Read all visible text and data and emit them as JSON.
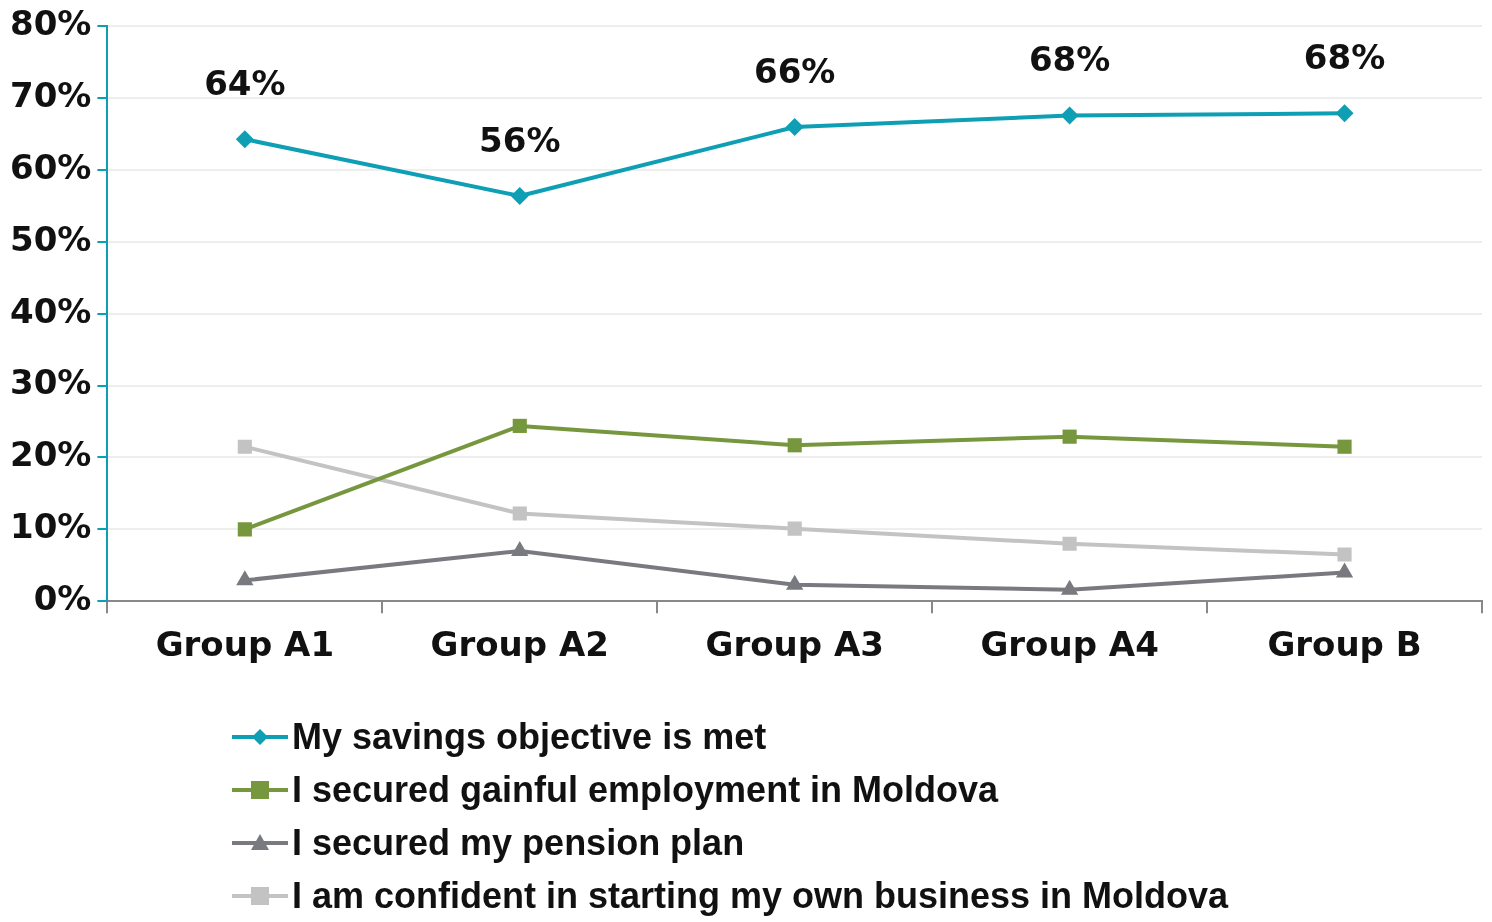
{
  "chart_data": {
    "type": "line",
    "categories": [
      "Group A1",
      "Group A2",
      "Group A3",
      "Group A4",
      "Group B"
    ],
    "series": [
      {
        "name": "My savings objective is met",
        "color": "#0e9fb5",
        "marker": "diamond",
        "values": [
          64.3,
          56.4,
          66.0,
          67.6,
          67.9
        ],
        "value_labels": [
          "64%",
          "56%",
          "66%",
          "68%",
          "68%"
        ]
      },
      {
        "name": "I secured gainful employment in Moldova",
        "color": "#76973d",
        "marker": "square",
        "values": [
          10.0,
          24.4,
          21.7,
          22.9,
          21.5
        ]
      },
      {
        "name": "I secured my pension plan",
        "color": "#797a80",
        "marker": "triangle",
        "values": [
          2.9,
          7.0,
          2.3,
          1.6,
          4.0
        ]
      },
      {
        "name": "I am confident in starting my own business in Moldova",
        "color": "#c3c3c3",
        "marker": "square",
        "values": [
          21.5,
          12.2,
          10.1,
          8.0,
          6.5
        ]
      }
    ],
    "ylim": [
      0,
      80
    ],
    "yticks": [
      {
        "value": 0,
        "label": "0%"
      },
      {
        "value": 10,
        "label": "10%"
      },
      {
        "value": 20,
        "label": "20%"
      },
      {
        "value": 30,
        "label": "30%"
      },
      {
        "value": 40,
        "label": "40%"
      },
      {
        "value": 50,
        "label": "50%"
      },
      {
        "value": 60,
        "label": "60%"
      },
      {
        "value": 70,
        "label": "70%"
      },
      {
        "value": 80,
        "label": "80%"
      }
    ],
    "grid": "y",
    "legend": "bottom left",
    "line_style": "solid"
  }
}
